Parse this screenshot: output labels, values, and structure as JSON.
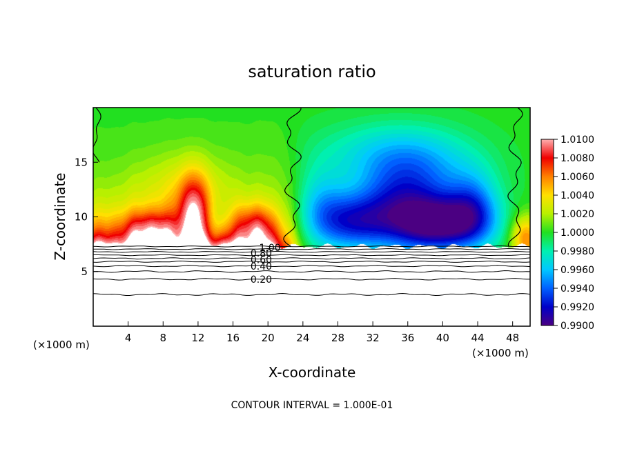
{
  "chart_data": {
    "type": "heatmap",
    "title": "saturation ratio",
    "xlabel": "X-coordinate",
    "ylabel": "Z-coordinate",
    "x_unit": "(×1000 m)",
    "x_unit_right": "(×1000 m)",
    "xlim": [
      0,
      50
    ],
    "ylim": [
      0,
      20
    ],
    "xticks": [
      "4",
      "8",
      "12",
      "16",
      "20",
      "24",
      "28",
      "32",
      "36",
      "40",
      "44",
      "48"
    ],
    "yticks": [
      "5",
      "10",
      "15"
    ],
    "colorbar": {
      "min": 0.99,
      "max": 1.01,
      "labels": [
        "1.0100",
        "1.0080",
        "1.0060",
        "1.0040",
        "1.0020",
        "1.0000",
        "0.9980",
        "0.9960",
        "0.9940",
        "0.9920",
        "0.9900"
      ]
    },
    "contour_labels": [
      {
        "text": "1.00",
        "x": 19,
        "z": 7.2
      },
      {
        "text": "0.80",
        "x": 18,
        "z": 6.7
      },
      {
        "text": "0.60",
        "x": 18,
        "z": 6.1
      },
      {
        "text": "0.40",
        "x": 18,
        "z": 5.5
      },
      {
        "text": "0.20",
        "x": 18,
        "z": 4.3
      }
    ],
    "contour_levels_lower": [
      0.1,
      0.2,
      0.3,
      0.4,
      0.5,
      0.6,
      0.7,
      0.8,
      0.9,
      1.0
    ],
    "footer": "CONTOUR INTERVAL = 1.000E-01"
  }
}
